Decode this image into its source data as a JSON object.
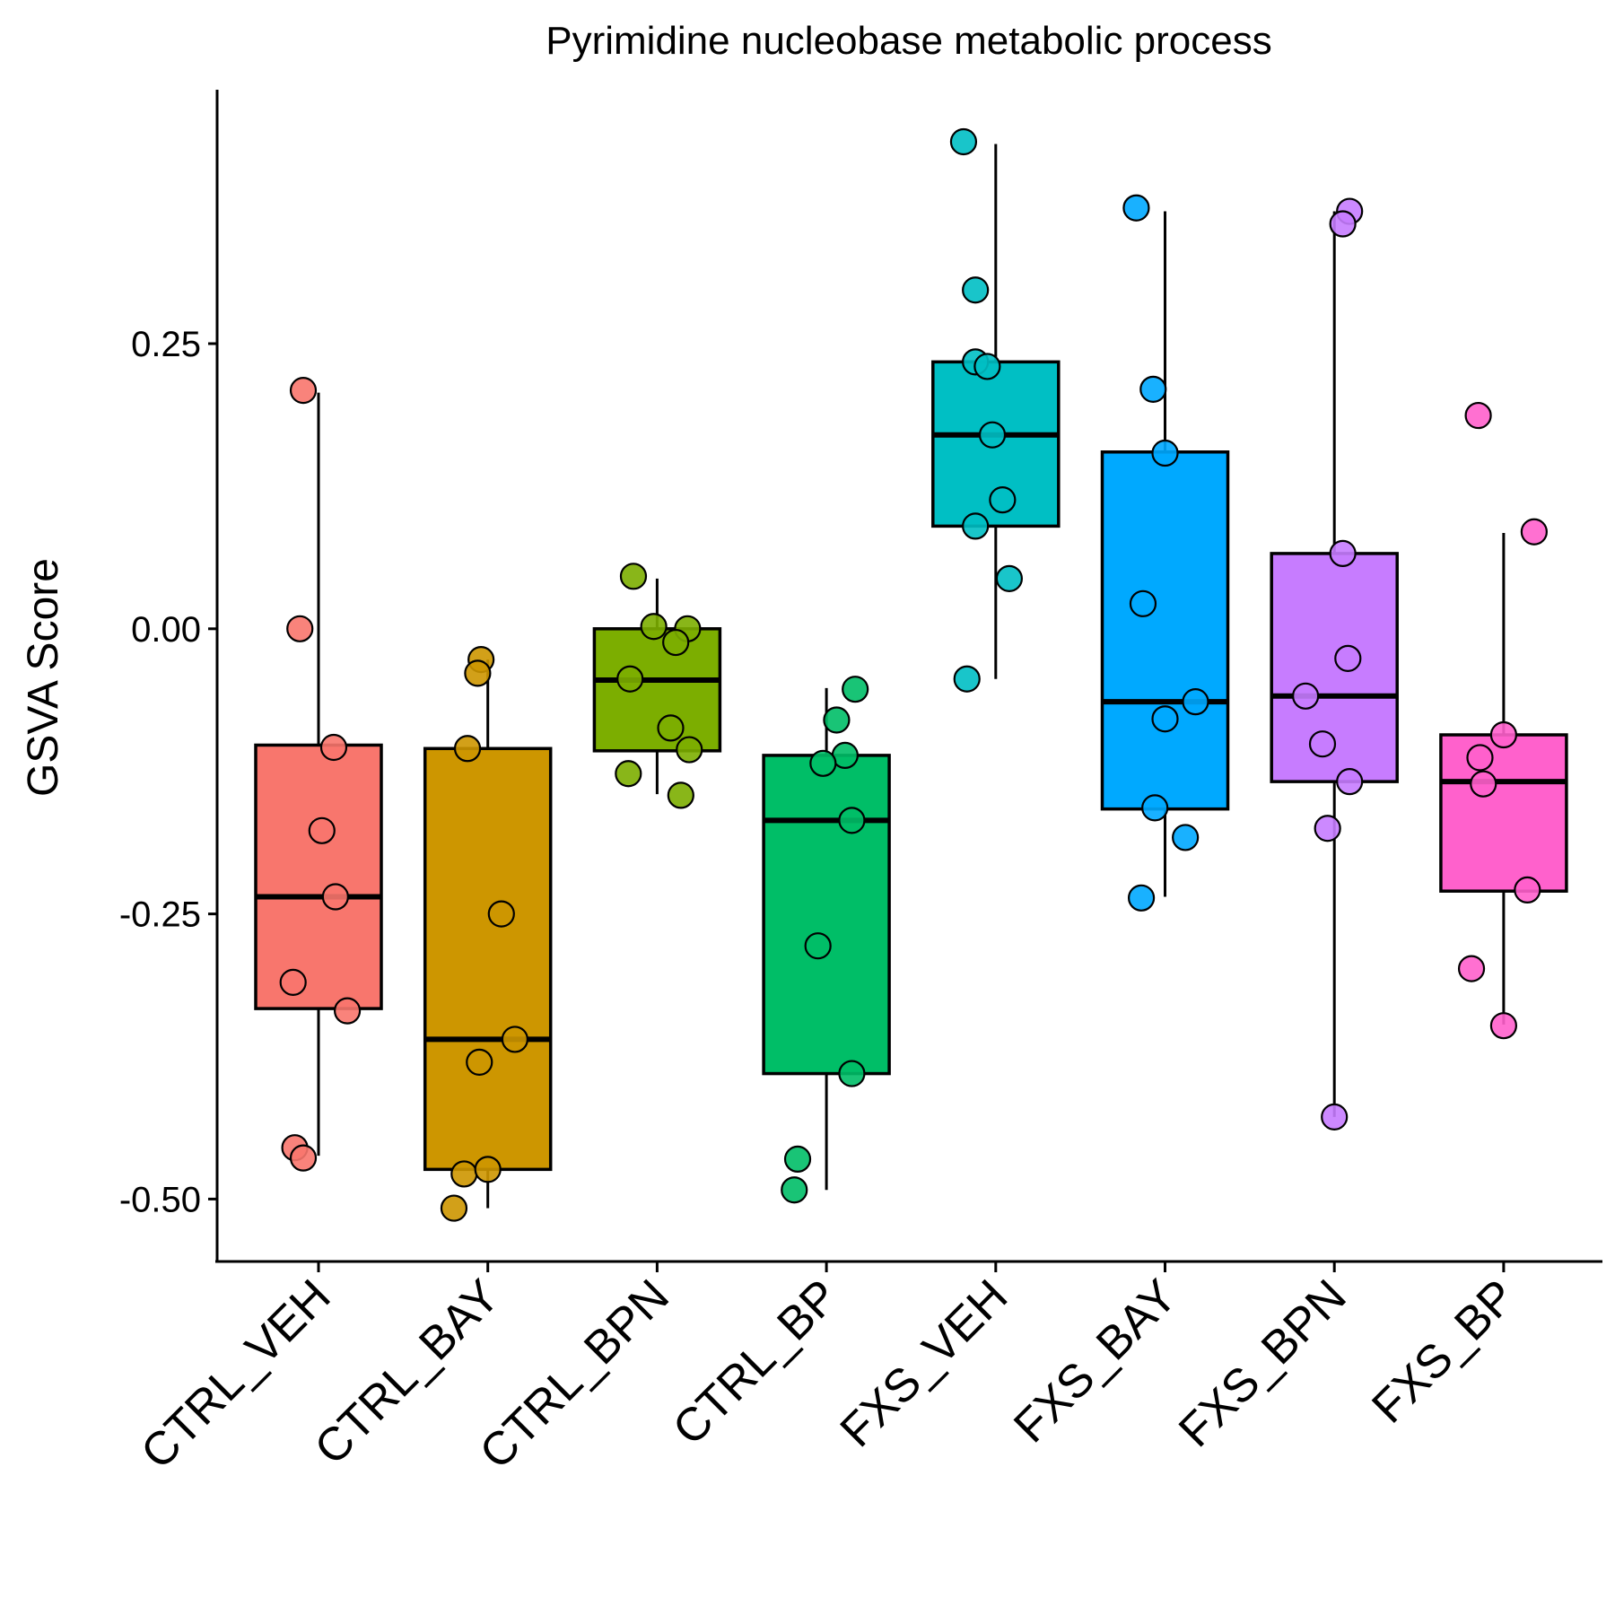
{
  "chart_data": {
    "type": "boxplot",
    "title": "Pyrimidine nucleobase metabolic process",
    "xlabel": "",
    "ylabel": "GSVA Score",
    "ylim": [
      -0.55,
      0.47
    ],
    "yticks": [
      -0.5,
      -0.25,
      0.0,
      0.25
    ],
    "ytick_labels": [
      "-0.50",
      "-0.25",
      "0.00",
      "0.25"
    ],
    "grid": false,
    "legend": "none",
    "categories": [
      "CTRL_VEH",
      "CTRL_BAY",
      "CTRL_BPN",
      "CTRL_BP",
      "FXS_VEH",
      "FXS_BAY",
      "FXS_BPN",
      "FXS_BP"
    ],
    "colors": [
      "#F8766D",
      "#CD9600",
      "#7CAE00",
      "#00BE67",
      "#00BFC4",
      "#00A9FF",
      "#C77CFF",
      "#FF61CC"
    ],
    "boxes": [
      {
        "q1": -0.333,
        "median": -0.235,
        "q3": -0.102,
        "whisker_low": -0.462,
        "whisker_high": 0.207
      },
      {
        "q1": -0.474,
        "median": -0.36,
        "q3": -0.105,
        "whisker_low": -0.508,
        "whisker_high": -0.027
      },
      {
        "q1": -0.107,
        "median": -0.045,
        "q3": 0.0,
        "whisker_low": -0.145,
        "whisker_high": 0.044
      },
      {
        "q1": -0.39,
        "median": -0.168,
        "q3": -0.111,
        "whisker_low": -0.492,
        "whisker_high": -0.052
      },
      {
        "q1": 0.09,
        "median": 0.17,
        "q3": 0.234,
        "whisker_low": -0.044,
        "whisker_high": 0.425
      },
      {
        "q1": -0.158,
        "median": -0.064,
        "q3": 0.155,
        "whisker_low": -0.235,
        "whisker_high": 0.366
      },
      {
        "q1": -0.134,
        "median": -0.059,
        "q3": 0.066,
        "whisker_low": -0.428,
        "whisker_high": 0.366
      },
      {
        "q1": -0.23,
        "median": -0.134,
        "q3": -0.093,
        "whisker_low": -0.347,
        "whisker_high": 0.084
      }
    ],
    "points": [
      [
        {
          "dx": -0.09,
          "y": 0.209
        },
        {
          "dx": -0.11,
          "y": 0.0
        },
        {
          "dx": 0.09,
          "y": -0.104
        },
        {
          "dx": 0.02,
          "y": -0.177
        },
        {
          "dx": 0.1,
          "y": -0.235
        },
        {
          "dx": -0.15,
          "y": -0.31
        },
        {
          "dx": 0.17,
          "y": -0.335
        },
        {
          "dx": -0.14,
          "y": -0.455
        },
        {
          "dx": -0.09,
          "y": -0.464
        }
      ],
      [
        {
          "dx": -0.04,
          "y": -0.027
        },
        {
          "dx": -0.06,
          "y": -0.039
        },
        {
          "dx": -0.12,
          "y": -0.105
        },
        {
          "dx": 0.08,
          "y": -0.25
        },
        {
          "dx": 0.16,
          "y": -0.36
        },
        {
          "dx": -0.05,
          "y": -0.38
        },
        {
          "dx": -0.14,
          "y": -0.478
        },
        {
          "dx": 0.0,
          "y": -0.474
        },
        {
          "dx": -0.2,
          "y": -0.508
        }
      ],
      [
        {
          "dx": -0.14,
          "y": 0.046
        },
        {
          "dx": -0.02,
          "y": 0.002
        },
        {
          "dx": 0.18,
          "y": 0.0
        },
        {
          "dx": 0.11,
          "y": -0.012
        },
        {
          "dx": -0.16,
          "y": -0.044
        },
        {
          "dx": 0.08,
          "y": -0.087
        },
        {
          "dx": 0.19,
          "y": -0.106
        },
        {
          "dx": -0.17,
          "y": -0.127
        },
        {
          "dx": 0.14,
          "y": -0.146
        }
      ],
      [
        {
          "dx": 0.17,
          "y": -0.053
        },
        {
          "dx": 0.06,
          "y": -0.08
        },
        {
          "dx": 0.11,
          "y": -0.111
        },
        {
          "dx": -0.02,
          "y": -0.118
        },
        {
          "dx": 0.15,
          "y": -0.168
        },
        {
          "dx": -0.05,
          "y": -0.278
        },
        {
          "dx": 0.15,
          "y": -0.39
        },
        {
          "dx": -0.17,
          "y": -0.465
        },
        {
          "dx": -0.19,
          "y": -0.492
        }
      ],
      [
        {
          "dx": -0.19,
          "y": 0.427
        },
        {
          "dx": -0.12,
          "y": 0.297
        },
        {
          "dx": -0.12,
          "y": 0.234
        },
        {
          "dx": -0.05,
          "y": 0.23
        },
        {
          "dx": -0.02,
          "y": 0.17
        },
        {
          "dx": 0.04,
          "y": 0.113
        },
        {
          "dx": -0.12,
          "y": 0.09
        },
        {
          "dx": 0.08,
          "y": 0.044
        },
        {
          "dx": -0.17,
          "y": -0.044
        }
      ],
      [
        {
          "dx": -0.17,
          "y": 0.369
        },
        {
          "dx": -0.07,
          "y": 0.21
        },
        {
          "dx": 0.0,
          "y": 0.154
        },
        {
          "dx": -0.13,
          "y": 0.022
        },
        {
          "dx": 0.18,
          "y": -0.064
        },
        {
          "dx": 0.0,
          "y": -0.079
        },
        {
          "dx": -0.06,
          "y": -0.157
        },
        {
          "dx": 0.12,
          "y": -0.183
        },
        {
          "dx": -0.14,
          "y": -0.236
        }
      ],
      [
        {
          "dx": 0.09,
          "y": 0.366
        },
        {
          "dx": 0.05,
          "y": 0.355
        },
        {
          "dx": 0.05,
          "y": 0.066
        },
        {
          "dx": 0.08,
          "y": -0.026
        },
        {
          "dx": -0.17,
          "y": -0.059
        },
        {
          "dx": -0.07,
          "y": -0.101
        },
        {
          "dx": 0.09,
          "y": -0.134
        },
        {
          "dx": -0.04,
          "y": -0.175
        },
        {
          "dx": 0.0,
          "y": -0.428
        }
      ],
      [
        {
          "dx": -0.15,
          "y": 0.187
        },
        {
          "dx": 0.18,
          "y": 0.085
        },
        {
          "dx": 0.0,
          "y": -0.093
        },
        {
          "dx": -0.14,
          "y": -0.113
        },
        {
          "dx": -0.12,
          "y": -0.136
        },
        {
          "dx": 0.14,
          "y": -0.229
        },
        {
          "dx": -0.19,
          "y": -0.298
        },
        {
          "dx": 0.0,
          "y": -0.348
        }
      ]
    ]
  }
}
